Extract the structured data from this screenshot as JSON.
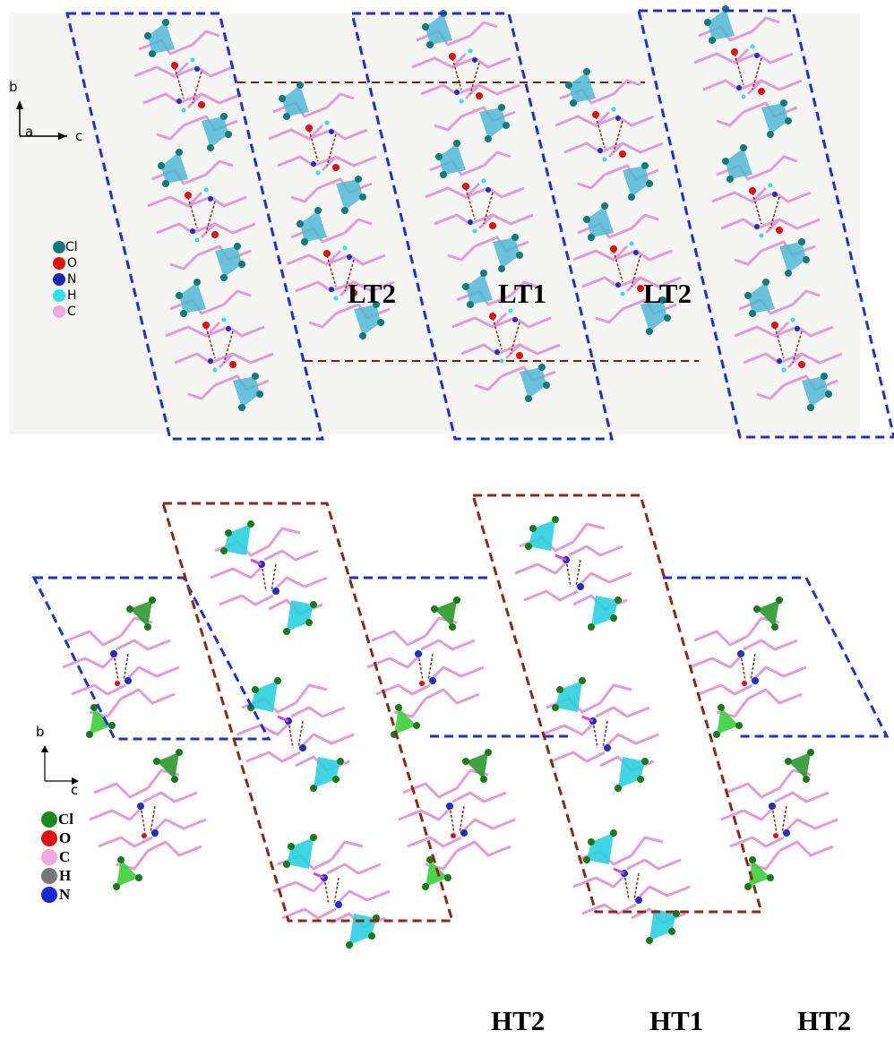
{
  "top_panel": {
    "axes": {
      "b": "b",
      "a": "a",
      "c": "c"
    },
    "legend": [
      {
        "label": "Cl"
      },
      {
        "label": "O"
      },
      {
        "label": "N"
      },
      {
        "label": "H"
      },
      {
        "label": "C"
      }
    ],
    "phase_labels": [
      "LT2",
      "LT1",
      "LT2"
    ]
  },
  "bottom_panel": {
    "axes": {
      "b": "b",
      "c": "c"
    },
    "legend": [
      {
        "label": "Cl"
      },
      {
        "label": "O"
      },
      {
        "label": "C"
      },
      {
        "label": "H"
      },
      {
        "label": "N"
      }
    ],
    "phase_labels": [
      "HT2",
      "HT1",
      "HT2"
    ]
  }
}
